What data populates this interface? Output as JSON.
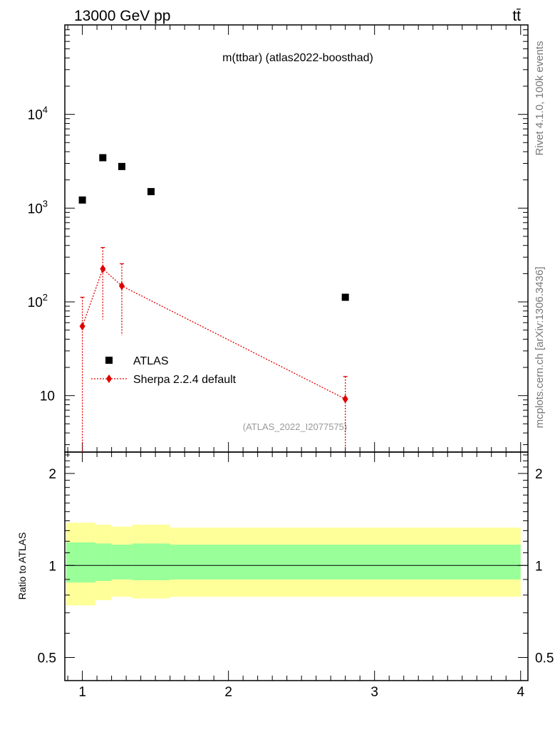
{
  "header": {
    "left": "13000 GeV pp",
    "right": "tt̄"
  },
  "side_labels": {
    "rivet": "Rivet 4.1.0,  100k events",
    "mcplots": "mcplots.cern.ch [arXiv:1306.3436]"
  },
  "chart_data": [
    {
      "type": "scatter",
      "title": "m(ttbar) (atlas2022-boosthad)",
      "watermark": "(ATLAS_2022_I2077575)",
      "xlim": [
        0.88,
        4.05
      ],
      "ylim": [
        2.5,
        90000
      ],
      "yscale": "log",
      "y_ticks": [
        {
          "value": 10,
          "label": "10"
        },
        {
          "value": 100,
          "label": "10",
          "sup": "2"
        },
        {
          "value": 1000,
          "label": "10",
          "sup": "3"
        },
        {
          "value": 10000,
          "label": "10",
          "sup": "4"
        }
      ],
      "legend": {
        "position": "lower-left"
      },
      "series": [
        {
          "name": "ATLAS",
          "marker": "square",
          "color": "#000000",
          "x": [
            1.0,
            1.14,
            1.27,
            1.47,
            2.8
          ],
          "y": [
            1220,
            3450,
            2780,
            1500,
            112
          ]
        },
        {
          "name": "Sherpa 2.2.4 default",
          "marker": "diamond",
          "color": "#e00000",
          "x": [
            1.0,
            1.14,
            1.27,
            2.8
          ],
          "y": [
            55,
            225,
            148,
            9.2
          ],
          "y_low": [
            2.5,
            65,
            44,
            2.7
          ],
          "y_high": [
            112,
            380,
            255,
            16
          ]
        }
      ]
    },
    {
      "type": "area",
      "ylabel": "Ratio to ATLAS",
      "xlim": [
        0.88,
        4.05
      ],
      "ylim": [
        0.42,
        2.35
      ],
      "yscale": "log",
      "y_ticks": [
        {
          "value": 0.5,
          "label": "0.5"
        },
        {
          "value": 1,
          "label": "1"
        },
        {
          "value": 2,
          "label": "2"
        }
      ],
      "x_ticks": [
        {
          "value": 1,
          "label": "1"
        },
        {
          "value": 2,
          "label": "2"
        },
        {
          "value": 3,
          "label": "3"
        },
        {
          "value": 4,
          "label": "4"
        }
      ],
      "reference_line": 1.0,
      "bands": [
        {
          "name": "stat+syst",
          "color": "#ffff99",
          "bins": [
            {
              "x0": 0.89,
              "x1": 1.09,
              "lo": 0.74,
              "hi": 1.38
            },
            {
              "x0": 1.09,
              "x1": 1.2,
              "lo": 0.77,
              "hi": 1.36
            },
            {
              "x0": 1.2,
              "x1": 1.34,
              "lo": 0.79,
              "hi": 1.34
            },
            {
              "x0": 1.34,
              "x1": 1.6,
              "lo": 0.78,
              "hi": 1.36
            },
            {
              "x0": 1.6,
              "x1": 4.0,
              "lo": 0.79,
              "hi": 1.33
            }
          ]
        },
        {
          "name": "stat",
          "color": "#99ff99",
          "bins": [
            {
              "x0": 0.89,
              "x1": 1.09,
              "lo": 0.88,
              "hi": 1.19
            },
            {
              "x0": 1.09,
              "x1": 1.2,
              "lo": 0.89,
              "hi": 1.18
            },
            {
              "x0": 1.2,
              "x1": 1.34,
              "lo": 0.9,
              "hi": 1.17
            },
            {
              "x0": 1.34,
              "x1": 1.6,
              "lo": 0.895,
              "hi": 1.18
            },
            {
              "x0": 1.6,
              "x1": 4.0,
              "lo": 0.9,
              "hi": 1.17
            }
          ]
        }
      ]
    }
  ]
}
